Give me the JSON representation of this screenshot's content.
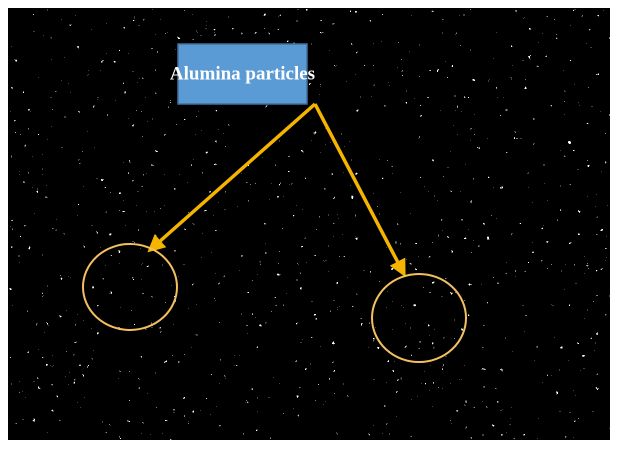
{
  "annotation": {
    "label": "Alumina particles"
  }
}
